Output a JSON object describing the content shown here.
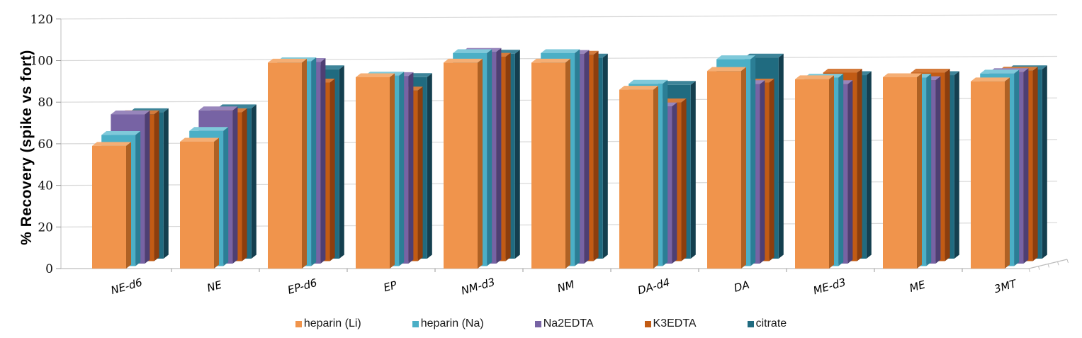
{
  "chart_data": {
    "type": "bar",
    "projection": "3d-clustered",
    "title": "",
    "ylabel": "% Recovery (spike vs fort)",
    "xlabel": "",
    "ylim": [
      0,
      120
    ],
    "ytick_step": 20,
    "yticks": [
      0,
      20,
      40,
      60,
      80,
      100,
      120
    ],
    "grid": true,
    "legend_position": "bottom",
    "background": "#ffffff",
    "gridline_color": "#d8d8d8",
    "axis_color": "#bdbdbd",
    "categories": [
      "NE-d6",
      "NE",
      "EP-d6",
      "EP",
      "NM-d3",
      "NM",
      "DA-d4",
      "DA",
      "ME-d3",
      "ME",
      "3MT"
    ],
    "series": [
      {
        "name": "heparin (Li)",
        "color": "#F0944C",
        "color_top": "#F5AE74",
        "color_side": "#AE6124",
        "values": [
          59,
          61,
          99,
          92,
          99,
          99,
          86,
          95,
          91,
          92,
          90
        ]
      },
      {
        "name": "heparin (Na)",
        "color": "#4BAFC6",
        "color_top": "#7FC9DA",
        "color_side": "#2B7E95",
        "values": [
          64,
          66,
          100,
          93,
          104,
          104,
          89,
          101,
          92,
          92,
          94
        ]
      },
      {
        "name": "Na2EDTA",
        "color": "#7763A4",
        "color_top": "#9886BC",
        "color_side": "#4E3F73",
        "values": [
          74,
          76,
          100,
          93,
          105,
          104,
          78,
          89,
          89,
          91,
          95
        ]
      },
      {
        "name": "K3EDTA",
        "color": "#C25B14",
        "color_top": "#D47B3C",
        "color_side": "#8C3E0E",
        "values": [
          74,
          75,
          90,
          86,
          103,
          104,
          80,
          90,
          95,
          95,
          96
        ]
      },
      {
        "name": "citrate",
        "color": "#206B80",
        "color_top": "#3D8499",
        "color_side": "#143F4F",
        "values": [
          75,
          77,
          97,
          93,
          105,
          103,
          89,
          103,
          94,
          94,
          97
        ]
      }
    ]
  }
}
